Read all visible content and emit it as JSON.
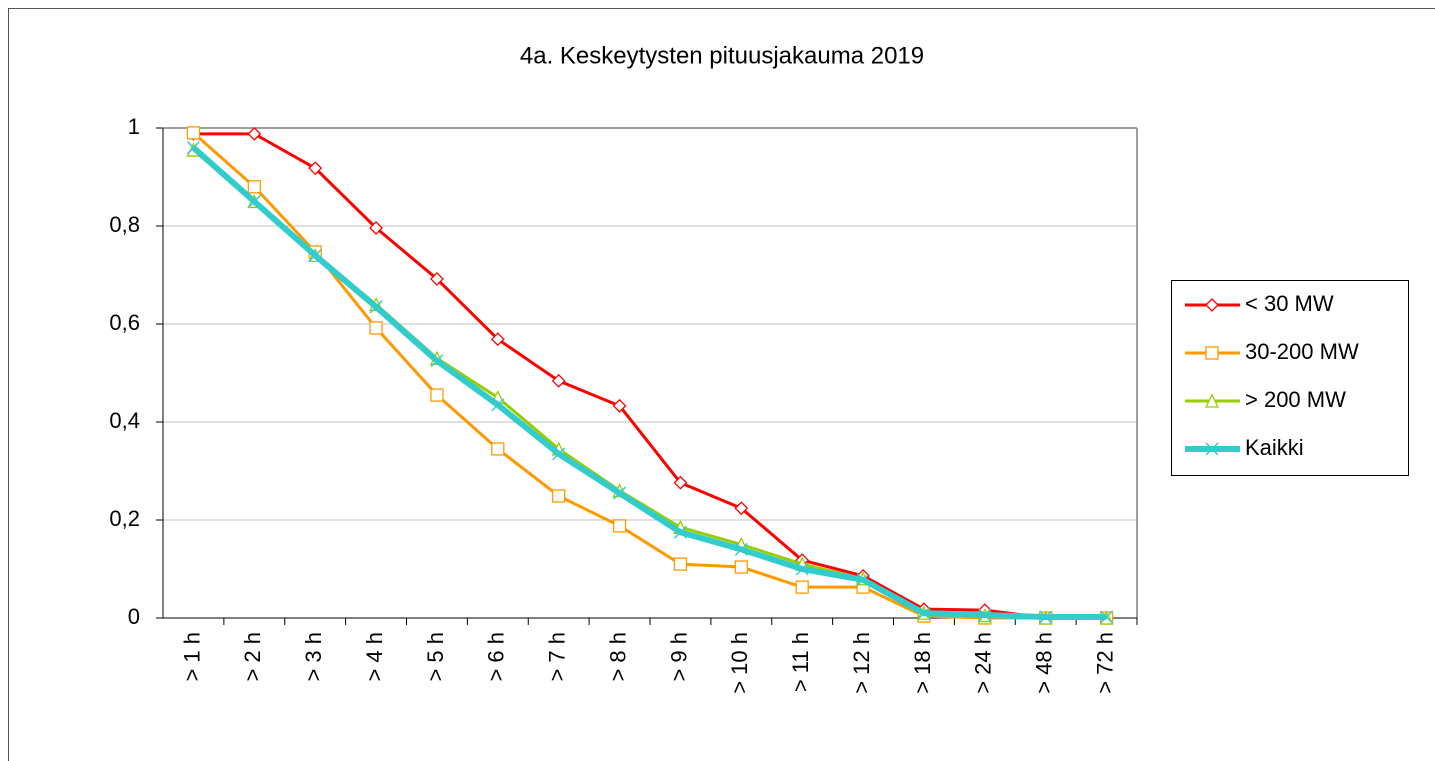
{
  "chart_data": {
    "type": "line",
    "title": "4a. Keskeytysten pituusjakauma 2019",
    "categories": [
      "> 1 h",
      "> 2 h",
      "> 3 h",
      "> 4 h",
      "> 5 h",
      "> 6 h",
      "> 7 h",
      "> 8 h",
      "> 9 h",
      "> 10 h",
      "> 11 h",
      "> 12 h",
      "> 18 h",
      "> 24 h",
      "> 48 h",
      "> 72 h"
    ],
    "series": [
      {
        "name": "< 30 MW",
        "color": "#ff0000",
        "marker": "diamond",
        "values": [
          0.988,
          0.988,
          0.918,
          0.796,
          0.692,
          0.569,
          0.484,
          0.433,
          0.276,
          0.224,
          0.118,
          0.086,
          0.018,
          0.016,
          0,
          0
        ]
      },
      {
        "name": "30-200 MW",
        "color": "#ff9900",
        "marker": "square",
        "values": [
          0.99,
          0.88,
          0.747,
          0.592,
          0.455,
          0.345,
          0.249,
          0.188,
          0.11,
          0.104,
          0.063,
          0.063,
          0.004,
          0,
          0,
          0
        ]
      },
      {
        "name": "> 200 MW",
        "color": "#99cc00",
        "marker": "triangle",
        "values": [
          0.955,
          0.85,
          0.74,
          0.64,
          0.53,
          0.45,
          0.345,
          0.26,
          0.185,
          0.15,
          0.11,
          0.08,
          0.01,
          0.005,
          0,
          0
        ]
      },
      {
        "name": "Kaikki",
        "color": "#33cccc",
        "marker": "x",
        "values": [
          0.96,
          0.85,
          0.74,
          0.635,
          0.525,
          0.435,
          0.335,
          0.255,
          0.175,
          0.14,
          0.1,
          0.078,
          0.01,
          0.006,
          0.002,
          0.002
        ]
      }
    ],
    "ylim": [
      0,
      1
    ],
    "yticks": [
      0,
      {
        "value": 0.2,
        "label": "0,2"
      },
      {
        "value": 0.4,
        "label": "0,4"
      },
      {
        "value": 0.6,
        "label": "0,6"
      },
      {
        "value": 0.8,
        "label": "0,8"
      },
      1
    ],
    "grid": true,
    "legend": "right"
  }
}
